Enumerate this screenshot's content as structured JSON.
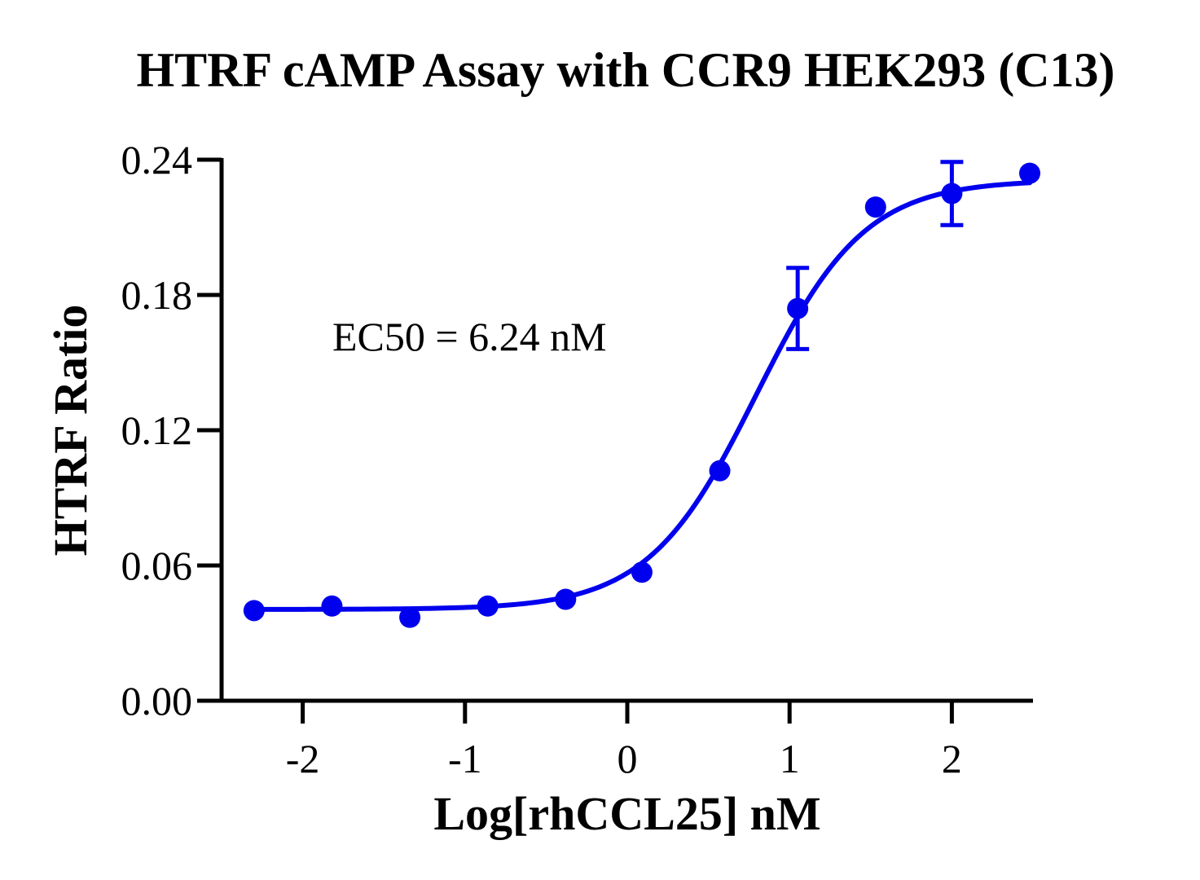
{
  "chart_data": {
    "type": "scatter",
    "title": "HTRF cAMP Assay with CCR9 HEK293 (C13)",
    "xlabel": "Log[rhCCL25] nM",
    "ylabel": "HTRF Ratio",
    "xlim": [
      -2.5,
      2.5
    ],
    "ylim": [
      0,
      0.24
    ],
    "x_ticks": [
      -2,
      -1,
      0,
      1,
      2
    ],
    "x_tick_labels": [
      "-2",
      "-1",
      "0",
      "1",
      "2"
    ],
    "y_ticks": [
      0,
      0.06,
      0.12,
      0.18,
      0.24
    ],
    "y_tick_labels": [
      "0.00",
      "0.06",
      "0.12",
      "0.18",
      "0.24"
    ],
    "grid": false,
    "annotation": "EC50 = 6.24 nM",
    "series": [
      {
        "color": "#0000ee",
        "x": [
          -2.3,
          -1.82,
          -1.34,
          -0.86,
          -0.38,
          0.09,
          0.57,
          1.05,
          1.53,
          2.0,
          2.48
        ],
        "y": [
          0.04,
          0.042,
          0.037,
          0.042,
          0.045,
          0.057,
          0.102,
          0.174,
          0.219,
          0.225,
          0.234
        ],
        "error": [
          0,
          0,
          0,
          0,
          0,
          0,
          0,
          0.018,
          0,
          0.014,
          0
        ]
      }
    ],
    "fit": {
      "model": "4PL",
      "bottom": 0.0405,
      "top": 0.231,
      "log_ec50": 0.795,
      "hill": 1.3,
      "color": "#0000ee"
    }
  }
}
